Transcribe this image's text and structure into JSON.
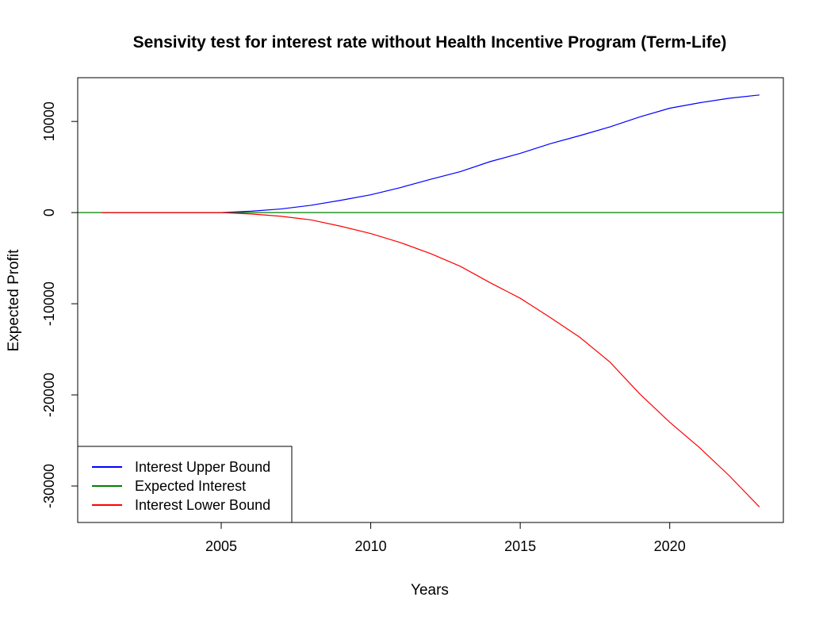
{
  "chart_data": {
    "type": "line",
    "title": "Sensivity test for interest rate without Health Incentive Program (Term-Life)",
    "xlabel": "Years",
    "ylabel": "Expected Profit",
    "xlim": [
      2000.2,
      2023.8
    ],
    "ylim": [
      -34000,
      14800
    ],
    "x_ticks": [
      2005,
      2010,
      2015,
      2020
    ],
    "y_ticks": [
      10000,
      0,
      -10000,
      -20000,
      -30000
    ],
    "x_tick_labels": [
      "2005",
      "2010",
      "2015",
      "2020"
    ],
    "y_tick_labels": [
      "10000",
      "0",
      "-10000",
      "-20000",
      "-30000"
    ],
    "grid": false,
    "legend_position": "bottom-left",
    "series": [
      {
        "name": "Interest Upper Bound",
        "color": "#0000ff",
        "x": [
          2001,
          2002,
          2003,
          2004,
          2005,
          2006,
          2007,
          2008,
          2009,
          2010,
          2011,
          2012,
          2013,
          2014,
          2015,
          2016,
          2017,
          2018,
          2019,
          2020,
          2021,
          2022,
          2023
        ],
        "y": [
          0,
          0,
          0,
          0,
          0,
          150,
          400,
          800,
          1350,
          1950,
          2750,
          3650,
          4500,
          5600,
          6500,
          7550,
          8450,
          9400,
          10500,
          11450,
          12050,
          12550,
          12900
        ]
      },
      {
        "name": "Expected Interest",
        "color": "#008000",
        "x": [
          2000.2,
          2023.8
        ],
        "y": [
          0,
          0
        ]
      },
      {
        "name": "Interest Lower Bound",
        "color": "#ff0000",
        "x": [
          2001,
          2002,
          2003,
          2004,
          2005,
          2006,
          2007,
          2008,
          2009,
          2010,
          2011,
          2012,
          2013,
          2014,
          2015,
          2016,
          2017,
          2018,
          2019,
          2020,
          2021,
          2022,
          2023
        ],
        "y": [
          0,
          0,
          0,
          0,
          0,
          -150,
          -400,
          -800,
          -1500,
          -2300,
          -3300,
          -4500,
          -5900,
          -7700,
          -9400,
          -11500,
          -13700,
          -16400,
          -19900,
          -23000,
          -25800,
          -28900,
          -32300
        ]
      }
    ]
  }
}
